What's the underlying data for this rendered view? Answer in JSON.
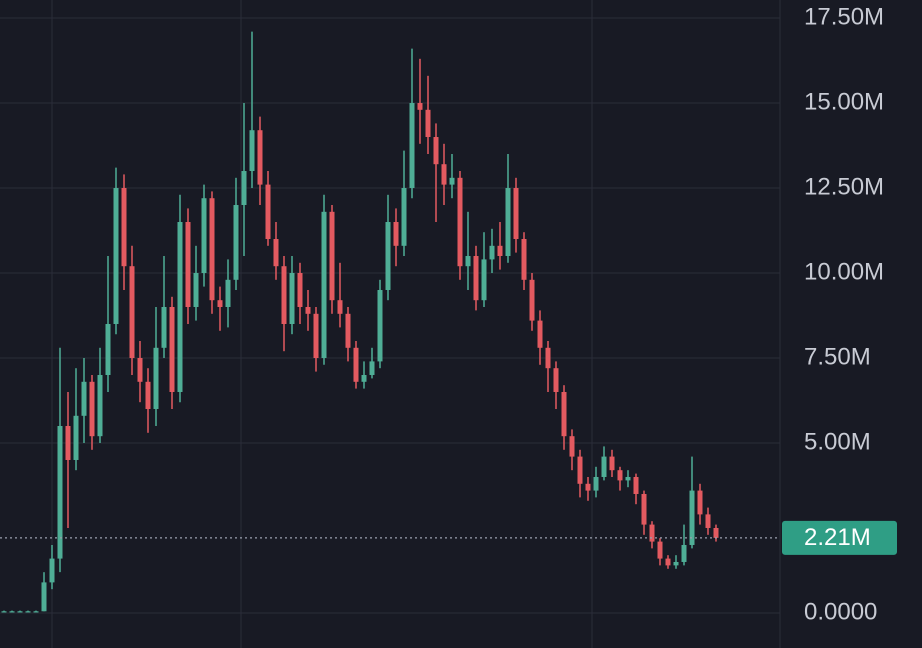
{
  "chart_data": {
    "type": "candlestick",
    "open": [
      0.05,
      0.05,
      0.05,
      0.05,
      0.05,
      0.05,
      0.9,
      1.6,
      5.5,
      4.5,
      5.8,
      6.8,
      5.2,
      7.0,
      8.5,
      12.5,
      10.2,
      7.5,
      6.8,
      6.0,
      7.8,
      9.0,
      6.5,
      11.5,
      9.0,
      10.0,
      12.2,
      9.2,
      9.0,
      9.8,
      12.0,
      13.0,
      14.2,
      12.6,
      11.0,
      10.2,
      8.5,
      10.0,
      9.0,
      8.8,
      7.5,
      11.8,
      9.2,
      8.8,
      7.8,
      6.8,
      7.0,
      7.4,
      9.5,
      11.5,
      10.8,
      12.5,
      15.0,
      14.8,
      14.0,
      13.2,
      12.6,
      12.8,
      10.2,
      10.5,
      9.2,
      10.4,
      10.8,
      10.5,
      12.5,
      11.0,
      9.8,
      8.6,
      7.8,
      7.2,
      6.5,
      5.2,
      4.6,
      3.8,
      3.6,
      4.0,
      4.6,
      4.2,
      3.9,
      4.0,
      3.5,
      2.6,
      2.1,
      1.6,
      1.4,
      1.5,
      2.0,
      3.6,
      2.9,
      2.5
    ],
    "high": [
      0.07,
      0.07,
      0.07,
      0.07,
      0.07,
      1.2,
      2.0,
      7.8,
      6.5,
      7.2,
      7.5,
      7.0,
      7.8,
      10.5,
      13.1,
      12.9,
      10.8,
      8.0,
      7.2,
      9.0,
      10.5,
      9.3,
      12.3,
      11.9,
      10.8,
      12.6,
      12.4,
      9.6,
      10.4,
      12.8,
      15.0,
      17.1,
      14.6,
      13.0,
      11.5,
      10.5,
      10.5,
      10.3,
      9.5,
      9.0,
      12.3,
      12.0,
      10.3,
      9.0,
      8.0,
      7.4,
      7.8,
      9.8,
      12.3,
      11.9,
      13.6,
      16.6,
      16.3,
      15.8,
      14.4,
      13.8,
      13.5,
      13.0,
      11.8,
      10.8,
      11.2,
      11.3,
      11.5,
      13.5,
      12.8,
      11.2,
      10.0,
      8.9,
      8.0,
      7.4,
      6.7,
      5.4,
      4.8,
      4.0,
      4.3,
      4.9,
      4.8,
      4.3,
      4.2,
      4.1,
      3.6,
      2.7,
      2.2,
      1.7,
      1.7,
      2.6,
      4.6,
      3.8,
      3.1,
      2.6
    ],
    "low": [
      0.03,
      0.03,
      0.03,
      0.03,
      0.03,
      0.05,
      0.7,
      1.2,
      2.5,
      4.2,
      5.0,
      4.8,
      5.0,
      6.5,
      8.2,
      9.5,
      7.0,
      6.2,
      5.3,
      5.5,
      7.5,
      6.0,
      6.2,
      8.5,
      8.6,
      9.6,
      8.8,
      8.3,
      8.4,
      9.5,
      10.5,
      12.5,
      12.0,
      10.8,
      9.8,
      7.7,
      8.2,
      8.5,
      8.3,
      7.1,
      7.3,
      8.8,
      8.4,
      7.4,
      6.6,
      6.6,
      6.9,
      7.2,
      9.2,
      10.2,
      10.5,
      12.2,
      13.8,
      13.5,
      11.5,
      12.0,
      12.2,
      9.8,
      9.5,
      8.9,
      9.0,
      10.0,
      10.1,
      10.3,
      10.6,
      9.5,
      8.3,
      7.3,
      6.5,
      6.0,
      4.8,
      4.2,
      3.4,
      3.3,
      3.4,
      3.9,
      4.0,
      3.6,
      3.7,
      3.2,
      2.3,
      1.9,
      1.4,
      1.3,
      1.3,
      1.4,
      1.9,
      2.6,
      2.3,
      2.1
    ],
    "close": [
      0.05,
      0.05,
      0.05,
      0.05,
      0.05,
      0.9,
      1.6,
      5.5,
      4.5,
      5.8,
      6.8,
      5.2,
      7.0,
      8.5,
      12.5,
      10.2,
      7.5,
      6.8,
      6.0,
      7.8,
      9.0,
      6.5,
      11.5,
      9.0,
      10.0,
      12.2,
      9.2,
      9.0,
      9.8,
      12.0,
      13.0,
      14.2,
      12.6,
      11.0,
      10.2,
      8.5,
      10.0,
      9.0,
      8.8,
      7.5,
      11.8,
      9.2,
      8.8,
      7.8,
      6.8,
      7.0,
      7.4,
      9.5,
      11.5,
      10.8,
      12.5,
      15.0,
      14.8,
      14.0,
      13.2,
      12.6,
      12.8,
      10.2,
      10.5,
      9.2,
      10.4,
      10.8,
      10.5,
      12.5,
      11.0,
      9.8,
      8.6,
      7.8,
      7.2,
      6.5,
      5.2,
      4.6,
      3.8,
      3.6,
      4.0,
      4.6,
      4.2,
      3.9,
      4.0,
      3.5,
      2.6,
      2.1,
      1.6,
      1.4,
      1.5,
      2.0,
      3.6,
      2.9,
      2.5,
      2.21
    ],
    "up_color": "#4fae96",
    "down_color": "#e35a60",
    "ylim": [
      -1.03,
      18.03
    ],
    "yticks": [
      {
        "value": 0,
        "label": "0.0000"
      },
      {
        "value": 5,
        "label": "5.00M"
      },
      {
        "value": 7.5,
        "label": "7.50M"
      },
      {
        "value": 10,
        "label": "10.00M"
      },
      {
        "value": 12.5,
        "label": "12.50M"
      },
      {
        "value": 15,
        "label": "15.00M"
      },
      {
        "value": 17.5,
        "label": "17.50M"
      }
    ],
    "grid": true,
    "last_price": {
      "value": 2.21,
      "label": "2.21M",
      "color": "#2f9e85"
    }
  }
}
